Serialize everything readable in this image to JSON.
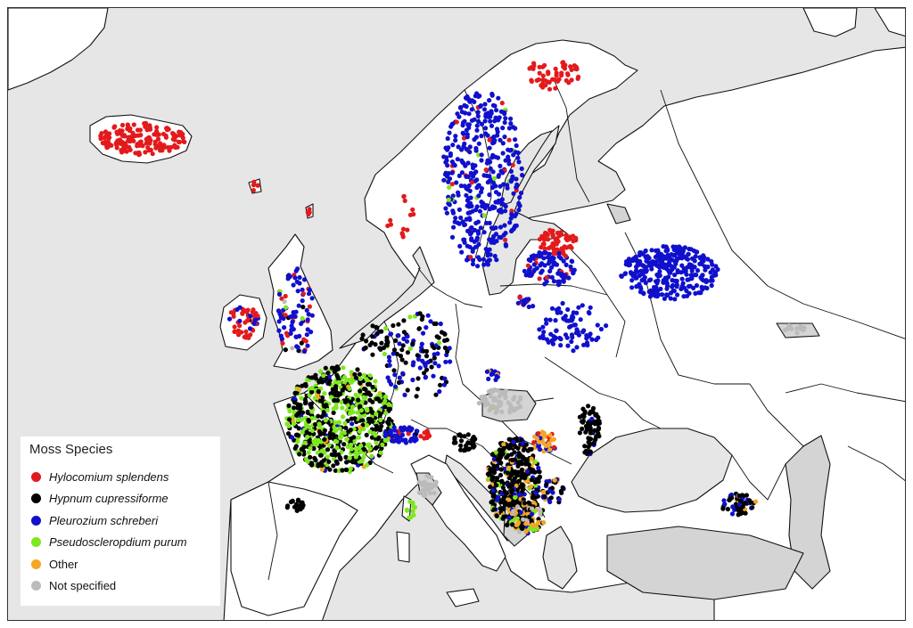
{
  "legend": {
    "title": "Moss Species",
    "items": [
      {
        "label": "Hylocomium splendens",
        "color": "#e31a1c",
        "italic": true
      },
      {
        "label": "Hypnum cupressiforme",
        "color": "#000000",
        "italic": true
      },
      {
        "label": "Pleurozium schreberi",
        "color": "#1010cc",
        "italic": true
      },
      {
        "label": "Pseudoscleropdium purum",
        "color": "#7ee81e",
        "italic": true
      },
      {
        "label": "Other",
        "color": "#f5a623",
        "italic": false
      },
      {
        "label": "Not specified",
        "color": "#bbbbbb",
        "italic": false
      }
    ]
  },
  "colors": {
    "sea": "#e6e6e6",
    "land": "#ffffff",
    "non_participating": "#d4d4d4",
    "border": "#111111"
  }
}
